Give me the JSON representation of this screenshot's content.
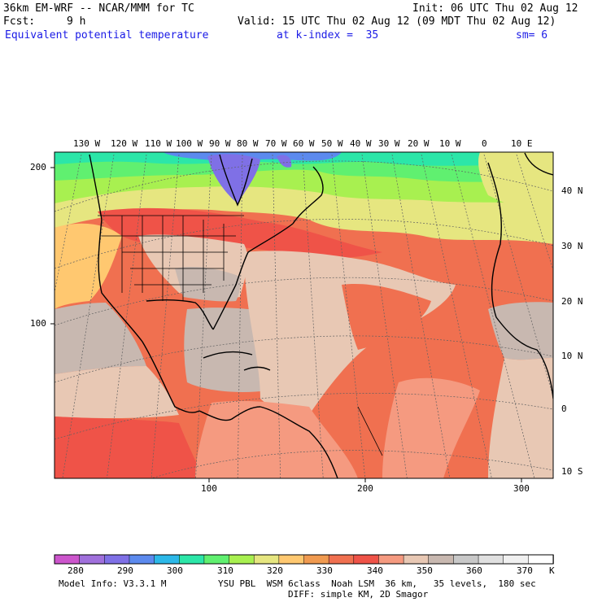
{
  "header": {
    "model": "36km EM-WRF -- NCAR/MMM for TC",
    "init": "Init: 06 UTC Thu 02 Aug 12",
    "fcst_label": "Fcst:",
    "fcst_value": "9 h",
    "valid": "Valid: 15 UTC Thu 02 Aug 12 (09 MDT Thu 02 Aug 12)",
    "field": "Equivalent potential temperature",
    "k_index": "at k-index =  35",
    "smoothing": "sm= 6"
  },
  "map": {
    "longitude_labels": [
      "130 W",
      "120 W",
      "110 W",
      "100 W",
      "90 W",
      "80 W",
      "70 W",
      "60 W",
      "50 W",
      "40 W",
      "30 W",
      "20 W",
      "10 W",
      "0",
      "10 E"
    ],
    "latitude_labels": [
      "40 N",
      "30 N",
      "20 N",
      "10 N",
      "0",
      "10 S"
    ],
    "y_axis_labels": [
      "200",
      "100"
    ],
    "x_axis_labels": [
      "100",
      "200",
      "300"
    ]
  },
  "colorbar": {
    "units": "K",
    "tick_labels": [
      "280",
      "290",
      "300",
      "310",
      "320",
      "330",
      "340",
      "350",
      "360",
      "370"
    ],
    "colors": [
      "#cc55cc",
      "#a070dc",
      "#7f70e6",
      "#5c8aee",
      "#2cb8e8",
      "#2ce6a8",
      "#60f070",
      "#a8f050",
      "#e6e680",
      "#ffc870",
      "#f09a50",
      "#f07050",
      "#ef5348",
      "#f59a80",
      "#e8c8b4",
      "#c8b8b0",
      "#c8c8c8",
      "#e0e0e0",
      "#f0f0f0",
      "#ffffff"
    ]
  },
  "footer": {
    "model_info": "Model Info: V3.3.1 M",
    "physics": "YSU PBL  WSM 6class  Noah LSM  36 km,   35 levels,  180 sec",
    "diffusion": "DIFF: simple KM, 2D Smagor"
  }
}
